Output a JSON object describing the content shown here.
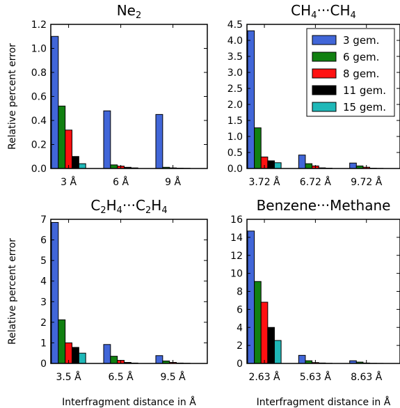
{
  "chart_data": [
    {
      "type": "bar",
      "title": "Ne",
      "title_sub": "2",
      "categories": [
        "3 Å",
        "6 Å",
        "9 Å"
      ],
      "ylabel": "Relative percent error",
      "xlabel": "",
      "ylim": [
        0,
        1.2
      ],
      "yticks": [
        "0.0",
        "0.2",
        "0.4",
        "0.6",
        "0.8",
        "1.0",
        "1.2"
      ],
      "series": [
        {
          "name": "3 gem.",
          "color": "#4166d8",
          "values": [
            1.1,
            0.48,
            0.45
          ]
        },
        {
          "name": "6 gem.",
          "color": "#118011",
          "values": [
            0.52,
            0.03,
            0.01
          ]
        },
        {
          "name": "8 gem.",
          "color": "#ff1111",
          "values": [
            0.32,
            0.02,
            0.005
          ]
        },
        {
          "name": "11 gem.",
          "color": "#000000",
          "values": [
            0.1,
            0.01,
            0.003
          ]
        },
        {
          "name": "15 gem.",
          "color": "#1fb8b8",
          "values": [
            0.04,
            0.005,
            0.002
          ]
        }
      ]
    },
    {
      "type": "bar",
      "title": "CH",
      "title_parts": [
        "CH",
        "4",
        "···CH",
        "4"
      ],
      "categories": [
        "3.72 Å",
        "6.72 Å",
        "9.72 Å"
      ],
      "ylabel": "",
      "xlabel": "",
      "ylim": [
        0,
        4.5
      ],
      "yticks": [
        "0.0",
        "0.5",
        "1.0",
        "1.5",
        "2.0",
        "2.5",
        "3.0",
        "3.5",
        "4.0",
        "4.5"
      ],
      "legend": "top-right",
      "series": [
        {
          "name": "3 gem.",
          "color": "#4166d8",
          "values": [
            4.3,
            0.42,
            0.17
          ]
        },
        {
          "name": "6 gem.",
          "color": "#118011",
          "values": [
            1.27,
            0.15,
            0.08
          ]
        },
        {
          "name": "8 gem.",
          "color": "#ff1111",
          "values": [
            0.36,
            0.08,
            0.04
          ]
        },
        {
          "name": "11 gem.",
          "color": "#000000",
          "values": [
            0.24,
            0.02,
            0.01
          ]
        },
        {
          "name": "15 gem.",
          "color": "#1fb8b8",
          "values": [
            0.18,
            0.01,
            0.005
          ]
        }
      ]
    },
    {
      "type": "bar",
      "title_parts": [
        "C",
        "2",
        "H",
        "4",
        "···C",
        "2",
        "H",
        "4"
      ],
      "categories": [
        "3.5 Å",
        "6.5 Å",
        "9.5 Å"
      ],
      "ylabel": "Relative percent error",
      "xlabel": "Interfragment distance in Å",
      "ylim": [
        0,
        7
      ],
      "yticks": [
        "0",
        "1",
        "2",
        "3",
        "4",
        "5",
        "6",
        "7"
      ],
      "series": [
        {
          "name": "3 gem.",
          "color": "#4166d8",
          "values": [
            6.85,
            0.92,
            0.38
          ]
        },
        {
          "name": "6 gem.",
          "color": "#118011",
          "values": [
            2.12,
            0.35,
            0.12
          ]
        },
        {
          "name": "8 gem.",
          "color": "#ff1111",
          "values": [
            1.0,
            0.15,
            0.05
          ]
        },
        {
          "name": "11 gem.",
          "color": "#000000",
          "values": [
            0.78,
            0.05,
            0.02
          ]
        },
        {
          "name": "15 gem.",
          "color": "#1fb8b8",
          "values": [
            0.5,
            0.02,
            0.01
          ]
        }
      ]
    },
    {
      "type": "bar",
      "title": "Benzene···Methane",
      "categories": [
        "2.63 Å",
        "5.63 Å",
        "8.63 Å"
      ],
      "ylabel": "",
      "xlabel": "Interfragment distance in Å",
      "ylim": [
        0,
        16
      ],
      "yticks": [
        "0",
        "2",
        "4",
        "6",
        "8",
        "10",
        "12",
        "14",
        "16"
      ],
      "series": [
        {
          "name": "3 gem.",
          "color": "#4166d8",
          "values": [
            14.7,
            0.9,
            0.3
          ]
        },
        {
          "name": "6 gem.",
          "color": "#118011",
          "values": [
            9.1,
            0.3,
            0.15
          ]
        },
        {
          "name": "8 gem.",
          "color": "#ff1111",
          "values": [
            6.8,
            0.1,
            0.05
          ]
        },
        {
          "name": "11 gem.",
          "color": "#000000",
          "values": [
            4.0,
            0.05,
            0.02
          ]
        },
        {
          "name": "15 gem.",
          "color": "#1fb8b8",
          "values": [
            2.55,
            0.02,
            0.01
          ]
        }
      ]
    }
  ]
}
